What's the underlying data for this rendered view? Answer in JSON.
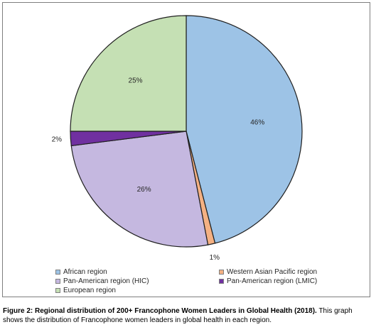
{
  "chart_data": {
    "type": "pie",
    "slices": [
      {
        "name": "African region",
        "value": 46,
        "label": "46%",
        "color": "#9dc3e6"
      },
      {
        "name": "Western Asian Pacific region",
        "value": 1,
        "label": "1%",
        "color": "#f4b183"
      },
      {
        "name": "Pan-American region (HIC)",
        "value": 26,
        "label": "26%",
        "color": "#c5b8e0"
      },
      {
        "name": "Pan-American region (LMIC)",
        "value": 2,
        "label": "2%",
        "color": "#7030a0"
      },
      {
        "name": "European region",
        "value": 25,
        "label": "25%",
        "color": "#c5e0b4"
      }
    ],
    "legend_position": "bottom"
  },
  "caption": {
    "bold": "Figure 2: Regional distribution of 200+ Francophone Women Leaders in Global Health (2018).",
    "text": " This graph shows the distribution of Francophone women leaders in global health in each region."
  }
}
